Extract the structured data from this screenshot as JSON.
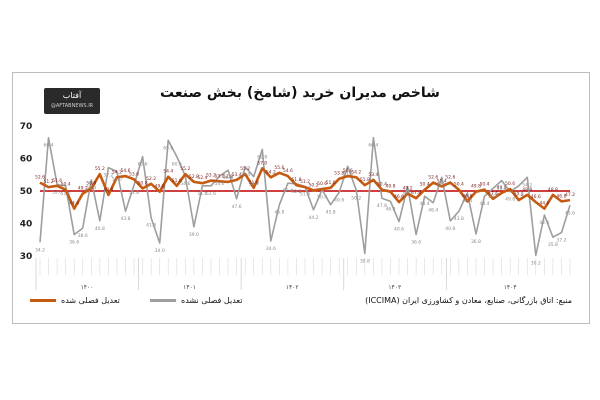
{
  "logo": {
    "main": "آفتاب",
    "sub": "@AFTABNEWS.IR"
  },
  "chart_data": {
    "type": "line",
    "title": "شاخص مدیران خرید (شامخ) بخش صنعت",
    "ylim": [
      30,
      70
    ],
    "yticks": [
      30,
      40,
      50,
      60,
      70
    ],
    "reference_line": 50,
    "series": [
      {
        "name": "تعدیل فصلی شده",
        "color": "#c55a11",
        "values": [
          52.6,
          51.2,
          51.6,
          50.4,
          44.6,
          49.2,
          50.8,
          55.2,
          48.8,
          54.2,
          54.6,
          53.6,
          50.8,
          52.2,
          49.8,
          54.4,
          51.6,
          55.2,
          52.8,
          52.4,
          53.2,
          53.0,
          52.8,
          53.4,
          55.2,
          51.0,
          57.0,
          54.2,
          55.6,
          54.6,
          51.8,
          51.2,
          50.2,
          50.6,
          51.0,
          53.8,
          54.6,
          54.2,
          51.8,
          53.4,
          50.4,
          49.8,
          46.6,
          49.2,
          47.8,
          50.4,
          52.6,
          51.4,
          52.6,
          50.4,
          46.8,
          49.8,
          50.4,
          47.6,
          49.4,
          50.6,
          47.2,
          48.8,
          46.6,
          44.6,
          48.8,
          46.8,
          47.2
        ]
      },
      {
        "name": "تعدیل فصلی نشده",
        "color": "#9e9e9e",
        "values": [
          34.2,
          66.4,
          52.0,
          51.6,
          36.6,
          38.6,
          53.4,
          40.8,
          57.2,
          56.0,
          43.8,
          51.8,
          60.6,
          41.8,
          34.0,
          65.6,
          60.6,
          54.6,
          39.0,
          51.6,
          51.6,
          54.6,
          56.4,
          47.6,
          57.4,
          54.4,
          62.8,
          34.6,
          45.8,
          52.4,
          52.2,
          51.4,
          44.2,
          50.4,
          45.8,
          49.6,
          57.6,
          50.2,
          30.8,
          66.4,
          47.8,
          46.8,
          40.6,
          51.4,
          36.6,
          48.4,
          46.4,
          54.2,
          40.8,
          43.8,
          49.4,
          36.8,
          48.4,
          50.8,
          53.2,
          49.8,
          51.6,
          54.2,
          30.2,
          42.6,
          35.8,
          37.2,
          45.6
        ]
      }
    ],
    "years": [
      "۱۴۰۰",
      "۱۴۰۱",
      "۱۴۰۲",
      "۱۴۰۳",
      "۱۴۰۴"
    ]
  },
  "legend": {
    "seasonal": "تعدیل فصلی شده",
    "raw": "تعدیل فصلی نشده"
  },
  "source": "منبع: اتاق بازرگانی، صنایع، معادن و کشاورزی ایران (ICCIMA)"
}
